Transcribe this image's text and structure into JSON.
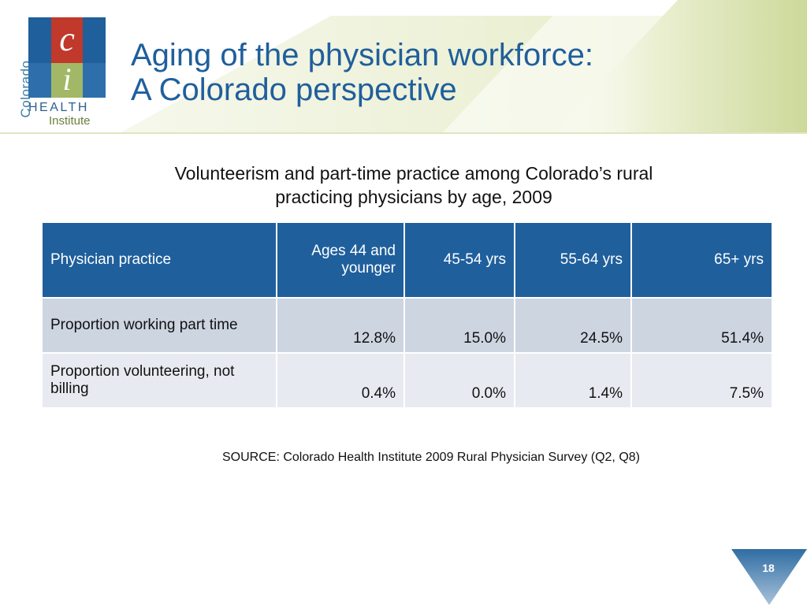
{
  "logo": {
    "vertical_text": "Colorado",
    "letter_c": "c",
    "letter_i": "i",
    "health_text": "HEALTH",
    "institute_text": "Institute"
  },
  "title": {
    "line1": "Aging of the physician workforce:",
    "line2": "A Colorado perspective"
  },
  "subtitle": {
    "line1": "Volunteerism and part-time practice among Colorado’s rural",
    "line2": "practicing physicians by age, 2009"
  },
  "table": {
    "headers": [
      "Physician practice",
      "Ages 44 and younger",
      "45-54 yrs",
      "55-64 yrs",
      "65+ yrs"
    ],
    "rows": [
      [
        "Proportion working part time",
        "12.8%",
        "15.0%",
        "24.5%",
        "51.4%"
      ],
      [
        "Proportion volunteering, not billing",
        "0.4%",
        "0.0%",
        "1.4%",
        "7.5%"
      ]
    ]
  },
  "source": "SOURCE: Colorado Health Institute 2009 Rural Physician Survey (Q2, Q8)",
  "page_number": "18",
  "colors": {
    "brand_blue": "#1f5f9c",
    "header_blue": "#1f5f9c",
    "row_dark": "#cdd5e1",
    "row_light": "#e7ebf1",
    "banner_green": "#d8e2b0"
  }
}
